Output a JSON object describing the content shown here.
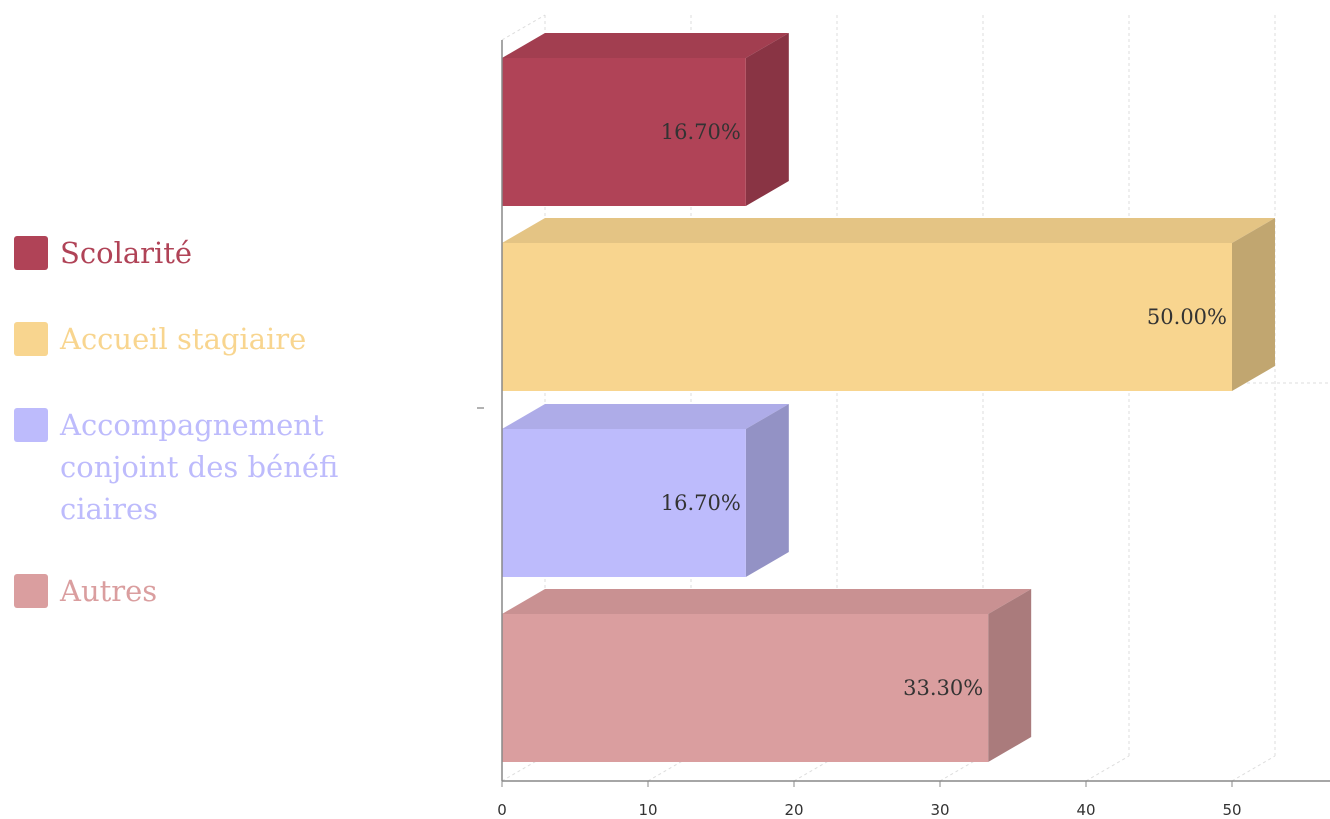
{
  "chart_data": {
    "type": "bar",
    "orientation": "horizontal",
    "three_d": true,
    "categories": [
      "Scolarité",
      "Accueil stagiaire",
      "Accompagnement conjoint des bénéficiaires",
      "Autres"
    ],
    "values": [
      16.7,
      50.0,
      16.7,
      33.3
    ],
    "data_labels": [
      "16.70%",
      "50.00%",
      "16.70%",
      "33.30%"
    ],
    "colors": [
      "#b04357",
      "#f8d58f",
      "#bdbbfc",
      "#da9e9f"
    ],
    "x_ticks": [
      "0",
      "10",
      "20",
      "30",
      "40",
      "50"
    ],
    "xlim": [
      0,
      50
    ],
    "grid": true,
    "legend_position": "left",
    "title": "",
    "xlabel": "",
    "ylabel": ""
  }
}
